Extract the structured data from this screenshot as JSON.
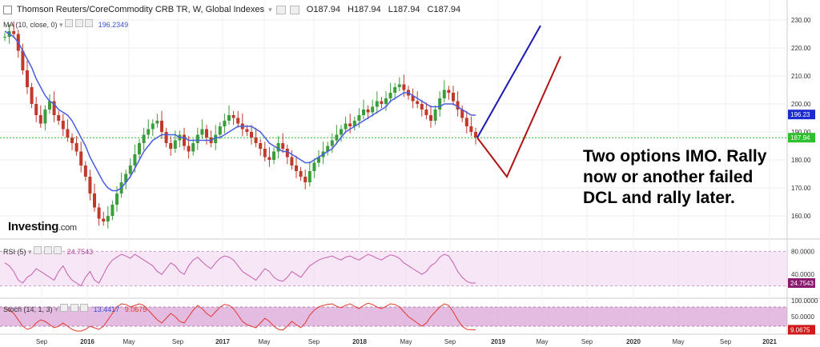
{
  "header": {
    "title": "Thomson Reuters/CoreCommodity CRB TR, W, Global Indexes",
    "open": "O187.94",
    "high": "H187.94",
    "low": "L187.94",
    "close": "C187.94"
  },
  "ma": {
    "label": "MA (10, close, 0)",
    "value": "196.2349"
  },
  "rsi": {
    "label": "RSI (5)",
    "value": "24.7543",
    "badge": "24.7543",
    "ticks": [
      "80.0000",
      "40.0000"
    ]
  },
  "stoch": {
    "label": "Stoch (14, 1, 3)",
    "k": "13.4417",
    "d": "9.0675",
    "badge": "9.0675",
    "ticks": [
      "100.0000",
      "50.0000"
    ]
  },
  "annotation": [
    "Two options IMO. Rally",
    "now or another failed",
    "DCL and rally later."
  ],
  "logo": {
    "name": "Investing",
    "suffix": ".com"
  },
  "colors": {
    "bull": "#3c9d3c",
    "bear": "#c0392b",
    "ma": "#4a5de0",
    "rsi": "#c55fb0",
    "stoch_k": "#e0392b",
    "band": "#f1d6ee",
    "stoch_band": "#d9a0d6",
    "path_up": "#1a1ab4",
    "path_alt": "#b01414",
    "last_price": "#2dbf2d"
  },
  "chart_data": {
    "type": "candlestick",
    "yticks": [
      160,
      170,
      180,
      190,
      200,
      210,
      220,
      230
    ],
    "ylim": [
      152,
      236
    ],
    "price_badges": {
      "ma": "196.23",
      "last": "187.94"
    },
    "xlabels": [
      "Sep",
      "2016",
      "May",
      "Sep",
      "2017",
      "May",
      "Sep",
      "2018",
      "May",
      "Sep",
      "2019",
      "May",
      "Sep",
      "2020",
      "May",
      "Sep",
      "2021"
    ],
    "closes": [
      224,
      226,
      225,
      219,
      212,
      206,
      200,
      196,
      193,
      198,
      201,
      196,
      194,
      191,
      188,
      186,
      183,
      178,
      174,
      168,
      163,
      159,
      158,
      160,
      164,
      168,
      172,
      175,
      178,
      182,
      186,
      189,
      191,
      193,
      194,
      190,
      186,
      184,
      187,
      189,
      185,
      183,
      186,
      189,
      191,
      188,
      186,
      189,
      192,
      194,
      196,
      195,
      193,
      191,
      190,
      188,
      186,
      184,
      181,
      180,
      183,
      186,
      184,
      181,
      178,
      176,
      174,
      172,
      176,
      179,
      181,
      183,
      185,
      187,
      189,
      191,
      193,
      192,
      194,
      196,
      198,
      197,
      199,
      201,
      200,
      202,
      204,
      206,
      207,
      205,
      203,
      201,
      200,
      198,
      196,
      194,
      198,
      202,
      205,
      204,
      201,
      198,
      195,
      192,
      190,
      188
    ],
    "ma_values": [
      226,
      225,
      224,
      222,
      219,
      216,
      213,
      209,
      206,
      203,
      201,
      200,
      198,
      197,
      196,
      194,
      191,
      188,
      185,
      181,
      178,
      175,
      172,
      170,
      169,
      169,
      170,
      172,
      174,
      177,
      180,
      183,
      185,
      187,
      188,
      189,
      189,
      189,
      189,
      188,
      188,
      187,
      187,
      187,
      187,
      187,
      187,
      188,
      188,
      189,
      190,
      191,
      192,
      192,
      192,
      192,
      191,
      190,
      188,
      186,
      185,
      184,
      183,
      183,
      182,
      181,
      180,
      179,
      179,
      180,
      181,
      182,
      183,
      184,
      186,
      188,
      190,
      191,
      192,
      193,
      194,
      195,
      196,
      197,
      198,
      199,
      201,
      202,
      203,
      204,
      204,
      203,
      202,
      201,
      200,
      199,
      199,
      199,
      200,
      200,
      200,
      199,
      198,
      197,
      196,
      196
    ],
    "projection_up": [
      [
        187.94,
        0
      ],
      [
        228,
        1
      ]
    ],
    "projection_alt": [
      [
        187.94,
        0
      ],
      [
        174,
        0.3
      ],
      [
        217,
        1
      ]
    ],
    "rsi_series": [
      60,
      55,
      45,
      30,
      25,
      35,
      40,
      50,
      45,
      40,
      35,
      30,
      45,
      55,
      40,
      30,
      25,
      20,
      35,
      45,
      30,
      25,
      40,
      55,
      65,
      70,
      75,
      72,
      68,
      75,
      70,
      65,
      60,
      55,
      45,
      40,
      50,
      60,
      55,
      45,
      40,
      55,
      65,
      70,
      62,
      55,
      50,
      60,
      68,
      72,
      70,
      65,
      55,
      45,
      40,
      35,
      30,
      40,
      50,
      45,
      35,
      30,
      28,
      35,
      45,
      40,
      35,
      45,
      55,
      60,
      65,
      68,
      70,
      72,
      68,
      65,
      70,
      72,
      68,
      65,
      70,
      75,
      72,
      68,
      65,
      70,
      74,
      72,
      68,
      60,
      55,
      50,
      45,
      40,
      45,
      55,
      60,
      70,
      75,
      72,
      60,
      45,
      35,
      28,
      25,
      25
    ],
    "stoch_series": [
      75,
      70,
      60,
      40,
      20,
      10,
      15,
      30,
      40,
      35,
      25,
      15,
      20,
      30,
      20,
      10,
      5,
      5,
      10,
      20,
      15,
      10,
      20,
      40,
      60,
      80,
      90,
      88,
      80,
      85,
      90,
      85,
      70,
      55,
      40,
      30,
      45,
      60,
      50,
      35,
      30,
      50,
      70,
      85,
      75,
      60,
      50,
      65,
      80,
      88,
      85,
      75,
      55,
      35,
      25,
      20,
      15,
      30,
      45,
      35,
      20,
      10,
      8,
      20,
      35,
      25,
      15,
      30,
      55,
      70,
      80,
      85,
      88,
      90,
      82,
      78,
      85,
      90,
      82,
      75,
      85,
      92,
      88,
      80,
      75,
      82,
      90,
      88,
      80,
      65,
      50,
      40,
      30,
      20,
      30,
      50,
      65,
      80,
      90,
      85,
      65,
      40,
      20,
      10,
      9,
      9
    ]
  }
}
